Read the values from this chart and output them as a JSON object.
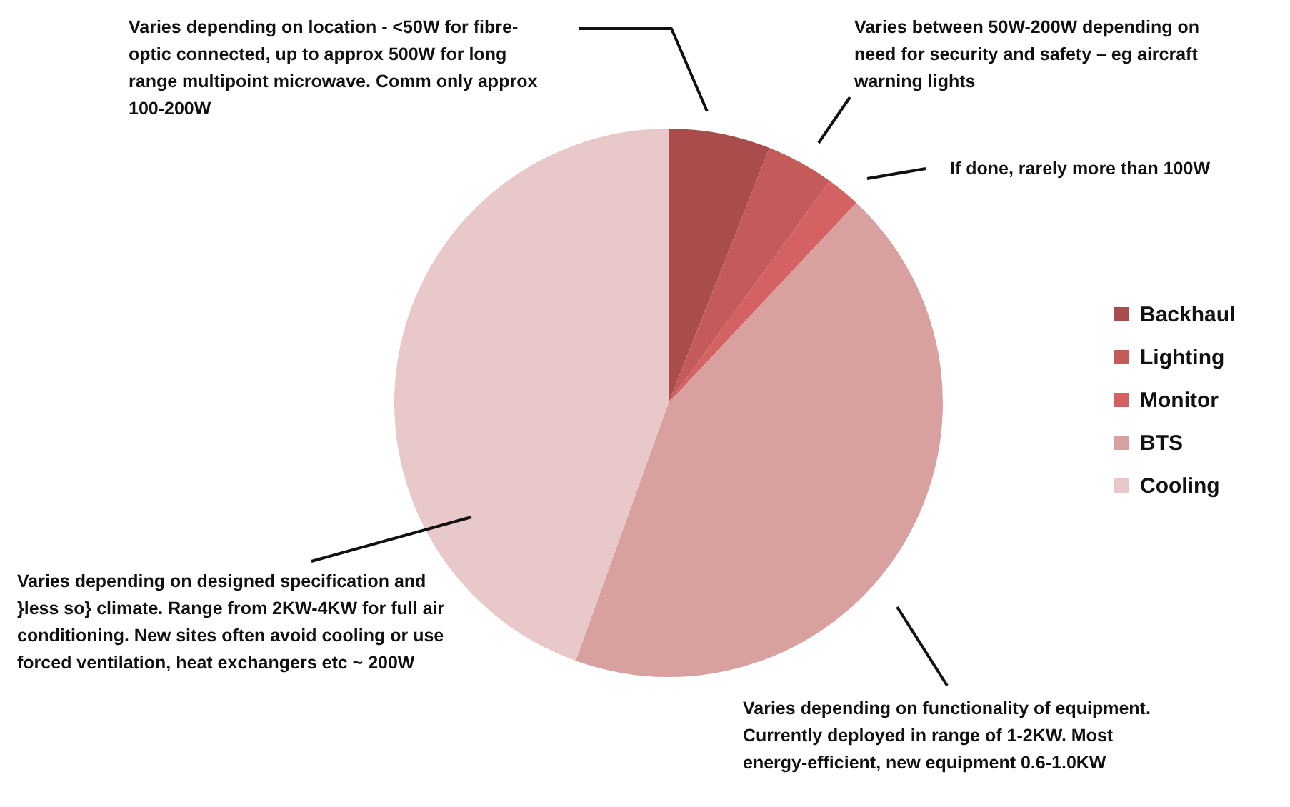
{
  "chart_data": {
    "type": "pie",
    "categories": [
      "Backhaul",
      "Lighting",
      "Monitor",
      "BTS",
      "Cooling"
    ],
    "values": [
      6,
      4,
      2,
      43.5,
      44.5
    ],
    "colors": [
      "#a84c4c",
      "#c45a5a",
      "#d46262",
      "#d9a0a0",
      "#e8c8c8"
    ],
    "legend": "right",
    "annotations": [
      "Varies depending on location - <50W for fibre-optic connected,  up to approx 500W  for long range multipoint microwave. Comm only approx 100-200W",
      "Varies between 50W-200W depending on need for security and safety – eg aircraft warning lights",
      "If done, rarely more than 100W",
      "Varies depending on functionality of equipment. Currently deployed in range of 1-2KW. Most energy-efficient, new equipment 0.6-1.0KW",
      "Varies depending on designed specification and }less so} climate. Range from 2KW-4KW for full air conditioning. New sites often avoid cooling or use forced ventilation, heat exchangers  etc ~ 200W"
    ]
  }
}
